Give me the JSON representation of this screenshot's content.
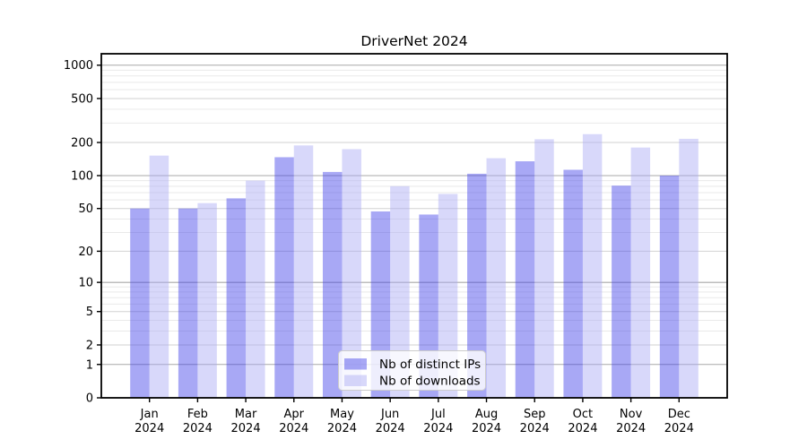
{
  "chart_data": {
    "type": "bar",
    "title": "DriverNet 2024",
    "categories": [
      "Jan 2024",
      "Feb 2024",
      "Mar 2024",
      "Apr 2024",
      "May 2024",
      "Jun 2024",
      "Jul 2024",
      "Aug 2024",
      "Sep 2024",
      "Oct 2024",
      "Nov 2024",
      "Dec 2024"
    ],
    "series": [
      {
        "name": "Nb of distinct IPs",
        "color": "#3e3ee8",
        "fill_opacity": 0.45,
        "values": [
          50,
          50,
          62,
          147,
          108,
          47,
          44,
          104,
          135,
          113,
          81,
          100
        ]
      },
      {
        "name": "Nb of downloads",
        "color": "#a8a8f4",
        "fill_opacity": 0.45,
        "values": [
          152,
          56,
          90,
          188,
          174,
          80,
          68,
          144,
          214,
          238,
          180,
          216
        ]
      }
    ],
    "y_axis": {
      "scale": "log1p-symlog",
      "labeled_ticks": [
        0,
        1,
        2,
        5,
        10,
        20,
        50,
        100,
        200,
        500,
        1000
      ],
      "decade_grid": [
        1,
        10,
        100,
        1000
      ],
      "sub_grid": [
        2,
        5,
        20,
        50,
        200,
        500
      ],
      "minor_grid": [
        3,
        4,
        6,
        7,
        8,
        9,
        30,
        40,
        60,
        70,
        80,
        90,
        300,
        400,
        600,
        700,
        800,
        900
      ],
      "ylim": [
        0,
        1268
      ]
    },
    "x_axis": {
      "tick_labels_line1": [
        "Jan",
        "Feb",
        "Mar",
        "Apr",
        "May",
        "Jun",
        "Jul",
        "Aug",
        "Sep",
        "Oct",
        "Nov",
        "Dec"
      ],
      "tick_labels_line2": [
        "2024",
        "2024",
        "2024",
        "2024",
        "2024",
        "2024",
        "2024",
        "2024",
        "2024",
        "2024",
        "2024",
        "2024"
      ]
    },
    "legend": {
      "position": "lower-center",
      "items": [
        "Nb of distinct IPs",
        "Nb of downloads"
      ]
    },
    "grid": true
  },
  "style": {
    "grid_major_color": "#a8a8a8",
    "grid_sub_color": "#d2d2d2",
    "grid_minor_color": "#e9e9e9",
    "spine_color": "#000000",
    "text_color": "#000000",
    "legend_bg": "rgba(255,255,255,0.8)",
    "legend_border": "#cccccc",
    "background": "#ffffff"
  }
}
